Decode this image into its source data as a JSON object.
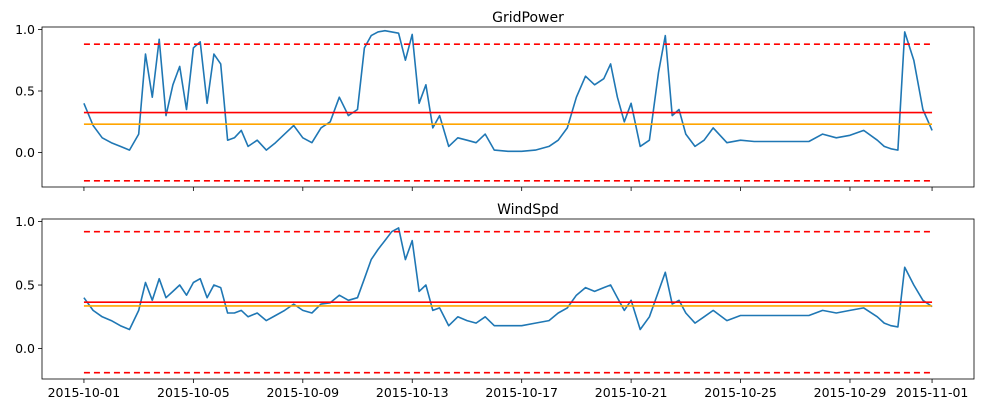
{
  "chart_data": [
    {
      "type": "line",
      "title": "GridPower",
      "xlabel": "",
      "ylabel": "",
      "xlim": [
        "2015-10-01",
        "2015-11-01"
      ],
      "ylim": [
        -0.28,
        1.02
      ],
      "x_ticks": [],
      "y_ticks": [
        {
          "value": 1.0,
          "label": "1.0"
        },
        {
          "value": 0.5,
          "label": "0.5"
        },
        {
          "value": 0.0,
          "label": "0.0"
        }
      ],
      "horizontal_lines": [
        {
          "value": 0.88,
          "color": "#ff0000",
          "style": "dashed"
        },
        {
          "value": -0.23,
          "color": "#ff0000",
          "style": "dashed"
        },
        {
          "value": 0.325,
          "color": "#ff0000",
          "style": "solid"
        },
        {
          "value": 0.23,
          "color": "#ffa500",
          "style": "solid"
        }
      ],
      "series": [
        {
          "color": "#1f77b4",
          "x": [
            "2015-10-01T00:00",
            "2015-10-01T08:00",
            "2015-10-01T16:00",
            "2015-10-02T00:00",
            "2015-10-02T08:00",
            "2015-10-02T16:00",
            "2015-10-03T00:00",
            "2015-10-03T06:00",
            "2015-10-03T12:00",
            "2015-10-03T18:00",
            "2015-10-04T00:00",
            "2015-10-04T06:00",
            "2015-10-04T12:00",
            "2015-10-04T18:00",
            "2015-10-05T00:00",
            "2015-10-05T06:00",
            "2015-10-05T12:00",
            "2015-10-05T18:00",
            "2015-10-06T00:00",
            "2015-10-06T06:00",
            "2015-10-06T12:00",
            "2015-10-06T18:00",
            "2015-10-07T00:00",
            "2015-10-07T08:00",
            "2015-10-07T16:00",
            "2015-10-08T00:00",
            "2015-10-08T08:00",
            "2015-10-08T16:00",
            "2015-10-09T00:00",
            "2015-10-09T08:00",
            "2015-10-09T16:00",
            "2015-10-10T00:00",
            "2015-10-10T08:00",
            "2015-10-10T16:00",
            "2015-10-11T00:00",
            "2015-10-11T06:00",
            "2015-10-11T12:00",
            "2015-10-11T18:00",
            "2015-10-12T00:00",
            "2015-10-12T06:00",
            "2015-10-12T12:00",
            "2015-10-12T18:00",
            "2015-10-13T00:00",
            "2015-10-13T06:00",
            "2015-10-13T12:00",
            "2015-10-13T18:00",
            "2015-10-14T00:00",
            "2015-10-14T08:00",
            "2015-10-14T16:00",
            "2015-10-15T00:00",
            "2015-10-15T08:00",
            "2015-10-15T16:00",
            "2015-10-16T00:00",
            "2015-10-16T12:00",
            "2015-10-17T00:00",
            "2015-10-17T12:00",
            "2015-10-18T00:00",
            "2015-10-18T08:00",
            "2015-10-18T16:00",
            "2015-10-19T00:00",
            "2015-10-19T08:00",
            "2015-10-19T16:00",
            "2015-10-20T00:00",
            "2015-10-20T06:00",
            "2015-10-20T12:00",
            "2015-10-20T18:00",
            "2015-10-21T00:00",
            "2015-10-21T08:00",
            "2015-10-21T16:00",
            "2015-10-22T00:00",
            "2015-10-22T06:00",
            "2015-10-22T12:00",
            "2015-10-22T18:00",
            "2015-10-23T00:00",
            "2015-10-23T08:00",
            "2015-10-23T16:00",
            "2015-10-24T00:00",
            "2015-10-24T12:00",
            "2015-10-25T00:00",
            "2015-10-25T12:00",
            "2015-10-26T00:00",
            "2015-10-26T12:00",
            "2015-10-27T00:00",
            "2015-10-27T12:00",
            "2015-10-28T00:00",
            "2015-10-28T12:00",
            "2015-10-29T00:00",
            "2015-10-29T12:00",
            "2015-10-30T00:00",
            "2015-10-30T06:00",
            "2015-10-30T12:00",
            "2015-10-30T18:00",
            "2015-10-31T00:00",
            "2015-10-31T08:00",
            "2015-10-31T16:00",
            "2015-11-01T00:00"
          ],
          "y": [
            0.4,
            0.22,
            0.12,
            0.08,
            0.05,
            0.02,
            0.15,
            0.8,
            0.45,
            0.92,
            0.3,
            0.55,
            0.7,
            0.35,
            0.85,
            0.9,
            0.4,
            0.8,
            0.72,
            0.1,
            0.12,
            0.18,
            0.05,
            0.1,
            0.02,
            0.08,
            0.15,
            0.22,
            0.12,
            0.08,
            0.2,
            0.25,
            0.45,
            0.3,
            0.35,
            0.85,
            0.95,
            0.98,
            0.99,
            0.98,
            0.97,
            0.75,
            0.96,
            0.4,
            0.55,
            0.2,
            0.3,
            0.05,
            0.12,
            0.1,
            0.08,
            0.15,
            0.02,
            0.01,
            0.01,
            0.02,
            0.05,
            0.1,
            0.2,
            0.45,
            0.62,
            0.55,
            0.6,
            0.72,
            0.45,
            0.25,
            0.4,
            0.05,
            0.1,
            0.65,
            0.95,
            0.3,
            0.35,
            0.15,
            0.05,
            0.1,
            0.2,
            0.08,
            0.1,
            0.09,
            0.09,
            0.09,
            0.09,
            0.09,
            0.15,
            0.12,
            0.14,
            0.18,
            0.1,
            0.05,
            0.03,
            0.02,
            0.98,
            0.75,
            0.35,
            0.18
          ]
        }
      ]
    },
    {
      "type": "line",
      "title": "WindSpd",
      "xlabel": "",
      "ylabel": "",
      "xlim": [
        "2015-10-01",
        "2015-11-01"
      ],
      "ylim": [
        -0.24,
        1.02
      ],
      "x_ticks": [
        "2015-10-01",
        "2015-10-05",
        "2015-10-09",
        "2015-10-13",
        "2015-10-17",
        "2015-10-21",
        "2015-10-25",
        "2015-10-29",
        "2015-11-01"
      ],
      "y_ticks": [
        {
          "value": 1.0,
          "label": "1.0"
        },
        {
          "value": 0.5,
          "label": "0.5"
        },
        {
          "value": 0.0,
          "label": "0.0"
        }
      ],
      "horizontal_lines": [
        {
          "value": 0.92,
          "color": "#ff0000",
          "style": "dashed"
        },
        {
          "value": -0.19,
          "color": "#ff0000",
          "style": "dashed"
        },
        {
          "value": 0.365,
          "color": "#ff0000",
          "style": "solid"
        },
        {
          "value": 0.335,
          "color": "#ffa500",
          "style": "solid"
        }
      ],
      "series": [
        {
          "color": "#1f77b4",
          "x": [
            "2015-10-01T00:00",
            "2015-10-01T08:00",
            "2015-10-01T16:00",
            "2015-10-02T00:00",
            "2015-10-02T08:00",
            "2015-10-02T16:00",
            "2015-10-03T00:00",
            "2015-10-03T06:00",
            "2015-10-03T12:00",
            "2015-10-03T18:00",
            "2015-10-04T00:00",
            "2015-10-04T06:00",
            "2015-10-04T12:00",
            "2015-10-04T18:00",
            "2015-10-05T00:00",
            "2015-10-05T06:00",
            "2015-10-05T12:00",
            "2015-10-05T18:00",
            "2015-10-06T00:00",
            "2015-10-06T06:00",
            "2015-10-06T12:00",
            "2015-10-06T18:00",
            "2015-10-07T00:00",
            "2015-10-07T08:00",
            "2015-10-07T16:00",
            "2015-10-08T00:00",
            "2015-10-08T08:00",
            "2015-10-08T16:00",
            "2015-10-09T00:00",
            "2015-10-09T08:00",
            "2015-10-09T16:00",
            "2015-10-10T00:00",
            "2015-10-10T08:00",
            "2015-10-10T16:00",
            "2015-10-11T00:00",
            "2015-10-11T06:00",
            "2015-10-11T12:00",
            "2015-10-11T18:00",
            "2015-10-12T00:00",
            "2015-10-12T06:00",
            "2015-10-12T12:00",
            "2015-10-12T18:00",
            "2015-10-13T00:00",
            "2015-10-13T06:00",
            "2015-10-13T12:00",
            "2015-10-13T18:00",
            "2015-10-14T00:00",
            "2015-10-14T08:00",
            "2015-10-14T16:00",
            "2015-10-15T00:00",
            "2015-10-15T08:00",
            "2015-10-15T16:00",
            "2015-10-16T00:00",
            "2015-10-16T12:00",
            "2015-10-17T00:00",
            "2015-10-17T12:00",
            "2015-10-18T00:00",
            "2015-10-18T08:00",
            "2015-10-18T16:00",
            "2015-10-19T00:00",
            "2015-10-19T08:00",
            "2015-10-19T16:00",
            "2015-10-20T00:00",
            "2015-10-20T06:00",
            "2015-10-20T12:00",
            "2015-10-20T18:00",
            "2015-10-21T00:00",
            "2015-10-21T08:00",
            "2015-10-21T16:00",
            "2015-10-22T00:00",
            "2015-10-22T06:00",
            "2015-10-22T12:00",
            "2015-10-22T18:00",
            "2015-10-23T00:00",
            "2015-10-23T08:00",
            "2015-10-23T16:00",
            "2015-10-24T00:00",
            "2015-10-24T12:00",
            "2015-10-25T00:00",
            "2015-10-25T12:00",
            "2015-10-26T00:00",
            "2015-10-26T12:00",
            "2015-10-27T00:00",
            "2015-10-27T12:00",
            "2015-10-28T00:00",
            "2015-10-28T12:00",
            "2015-10-29T00:00",
            "2015-10-29T12:00",
            "2015-10-30T00:00",
            "2015-10-30T06:00",
            "2015-10-30T12:00",
            "2015-10-30T18:00",
            "2015-10-31T00:00",
            "2015-10-31T08:00",
            "2015-10-31T16:00",
            "2015-11-01T00:00"
          ],
          "y": [
            0.4,
            0.3,
            0.25,
            0.22,
            0.18,
            0.15,
            0.3,
            0.52,
            0.38,
            0.55,
            0.4,
            0.45,
            0.5,
            0.42,
            0.52,
            0.55,
            0.4,
            0.5,
            0.48,
            0.28,
            0.28,
            0.3,
            0.25,
            0.28,
            0.22,
            0.26,
            0.3,
            0.35,
            0.3,
            0.28,
            0.35,
            0.36,
            0.42,
            0.38,
            0.4,
            0.55,
            0.7,
            0.78,
            0.85,
            0.92,
            0.95,
            0.7,
            0.85,
            0.45,
            0.5,
            0.3,
            0.32,
            0.18,
            0.25,
            0.22,
            0.2,
            0.25,
            0.18,
            0.18,
            0.18,
            0.2,
            0.22,
            0.28,
            0.32,
            0.42,
            0.48,
            0.45,
            0.48,
            0.5,
            0.4,
            0.3,
            0.38,
            0.15,
            0.25,
            0.45,
            0.6,
            0.35,
            0.38,
            0.28,
            0.2,
            0.25,
            0.3,
            0.22,
            0.26,
            0.26,
            0.26,
            0.26,
            0.26,
            0.26,
            0.3,
            0.28,
            0.3,
            0.32,
            0.25,
            0.2,
            0.18,
            0.17,
            0.64,
            0.5,
            0.38,
            0.33
          ]
        }
      ]
    }
  ]
}
